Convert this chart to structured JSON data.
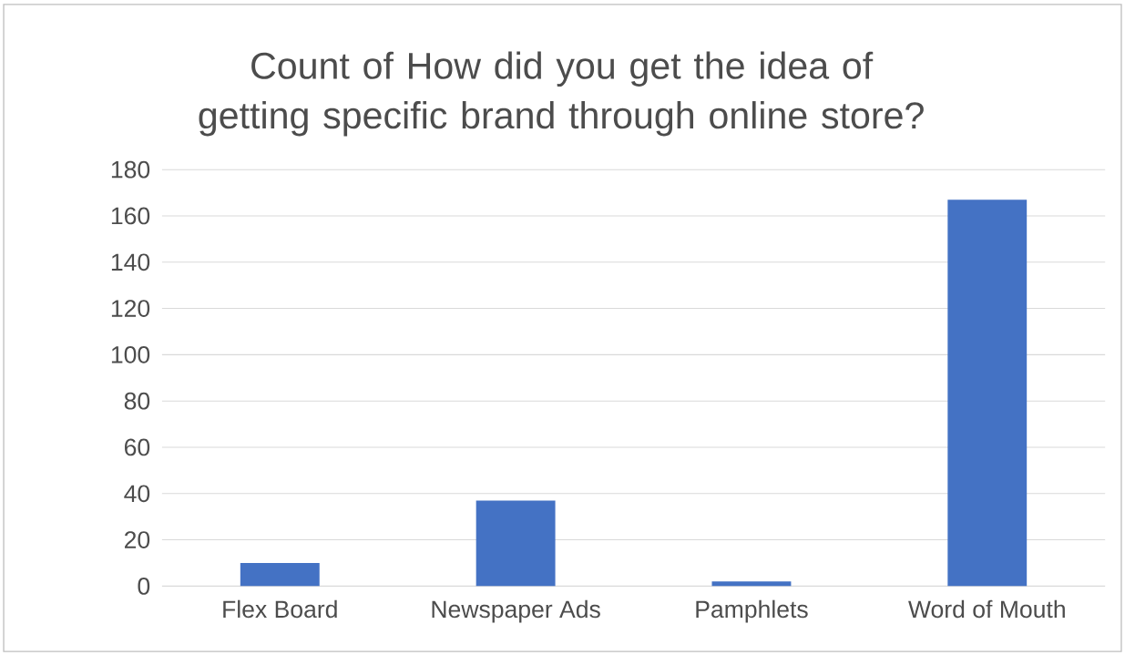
{
  "chart_data": {
    "type": "bar",
    "title": "Count of How did you get the idea of getting specific brand through online store?",
    "categories": [
      "Flex Board",
      "Newspaper Ads",
      "Pamphlets",
      "Word of Mouth"
    ],
    "values": [
      10,
      37,
      2,
      167
    ],
    "color": "#4472c4",
    "ylim": [
      0,
      180
    ],
    "yticks": [
      0,
      20,
      40,
      60,
      80,
      100,
      120,
      140,
      160,
      180
    ],
    "grid": "y"
  }
}
